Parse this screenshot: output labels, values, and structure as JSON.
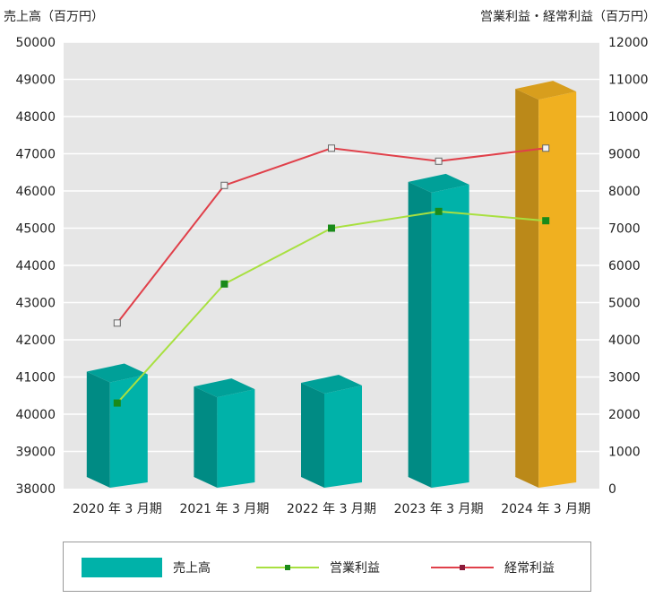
{
  "chart_data": {
    "type": "bar",
    "left_axis_title": "売上高（百万円）",
    "right_axis_title": "営業利益・経常利益（百万円）",
    "categories": [
      "2020 年 3 月期",
      "2021 年 3 月期",
      "2022 年 3 月期",
      "2023 年 3 月期",
      "2024 年 3 月期"
    ],
    "left_ylim": [
      38000,
      50000
    ],
    "left_ticks": [
      38000,
      39000,
      40000,
      41000,
      42000,
      43000,
      44000,
      45000,
      46000,
      47000,
      48000,
      49000,
      50000
    ],
    "right_ylim": [
      0,
      12000
    ],
    "right_ticks": [
      0,
      1000,
      2000,
      3000,
      4000,
      5000,
      6000,
      7000,
      8000,
      9000,
      10000,
      11000,
      12000
    ],
    "grid": true,
    "series": [
      {
        "name": "売上高",
        "kind": "bar",
        "axis": "left",
        "values": [
          41000,
          40600,
          40700,
          46100,
          48600
        ],
        "colors": [
          "#00b2a9",
          "#00b2a9",
          "#00b2a9",
          "#00b2a9",
          "#f0b020"
        ]
      },
      {
        "name": "営業利益",
        "kind": "line",
        "axis": "right",
        "color": "#a8e040",
        "marker_color": "#1a8a1a",
        "values": [
          2300,
          5500,
          7000,
          7450,
          7200
        ]
      },
      {
        "name": "経常利益",
        "kind": "line",
        "axis": "right",
        "color": "#e0404a",
        "marker_color": "#8a1a3a",
        "values": [
          4450,
          8150,
          9150,
          8800,
          9150
        ]
      }
    ]
  }
}
